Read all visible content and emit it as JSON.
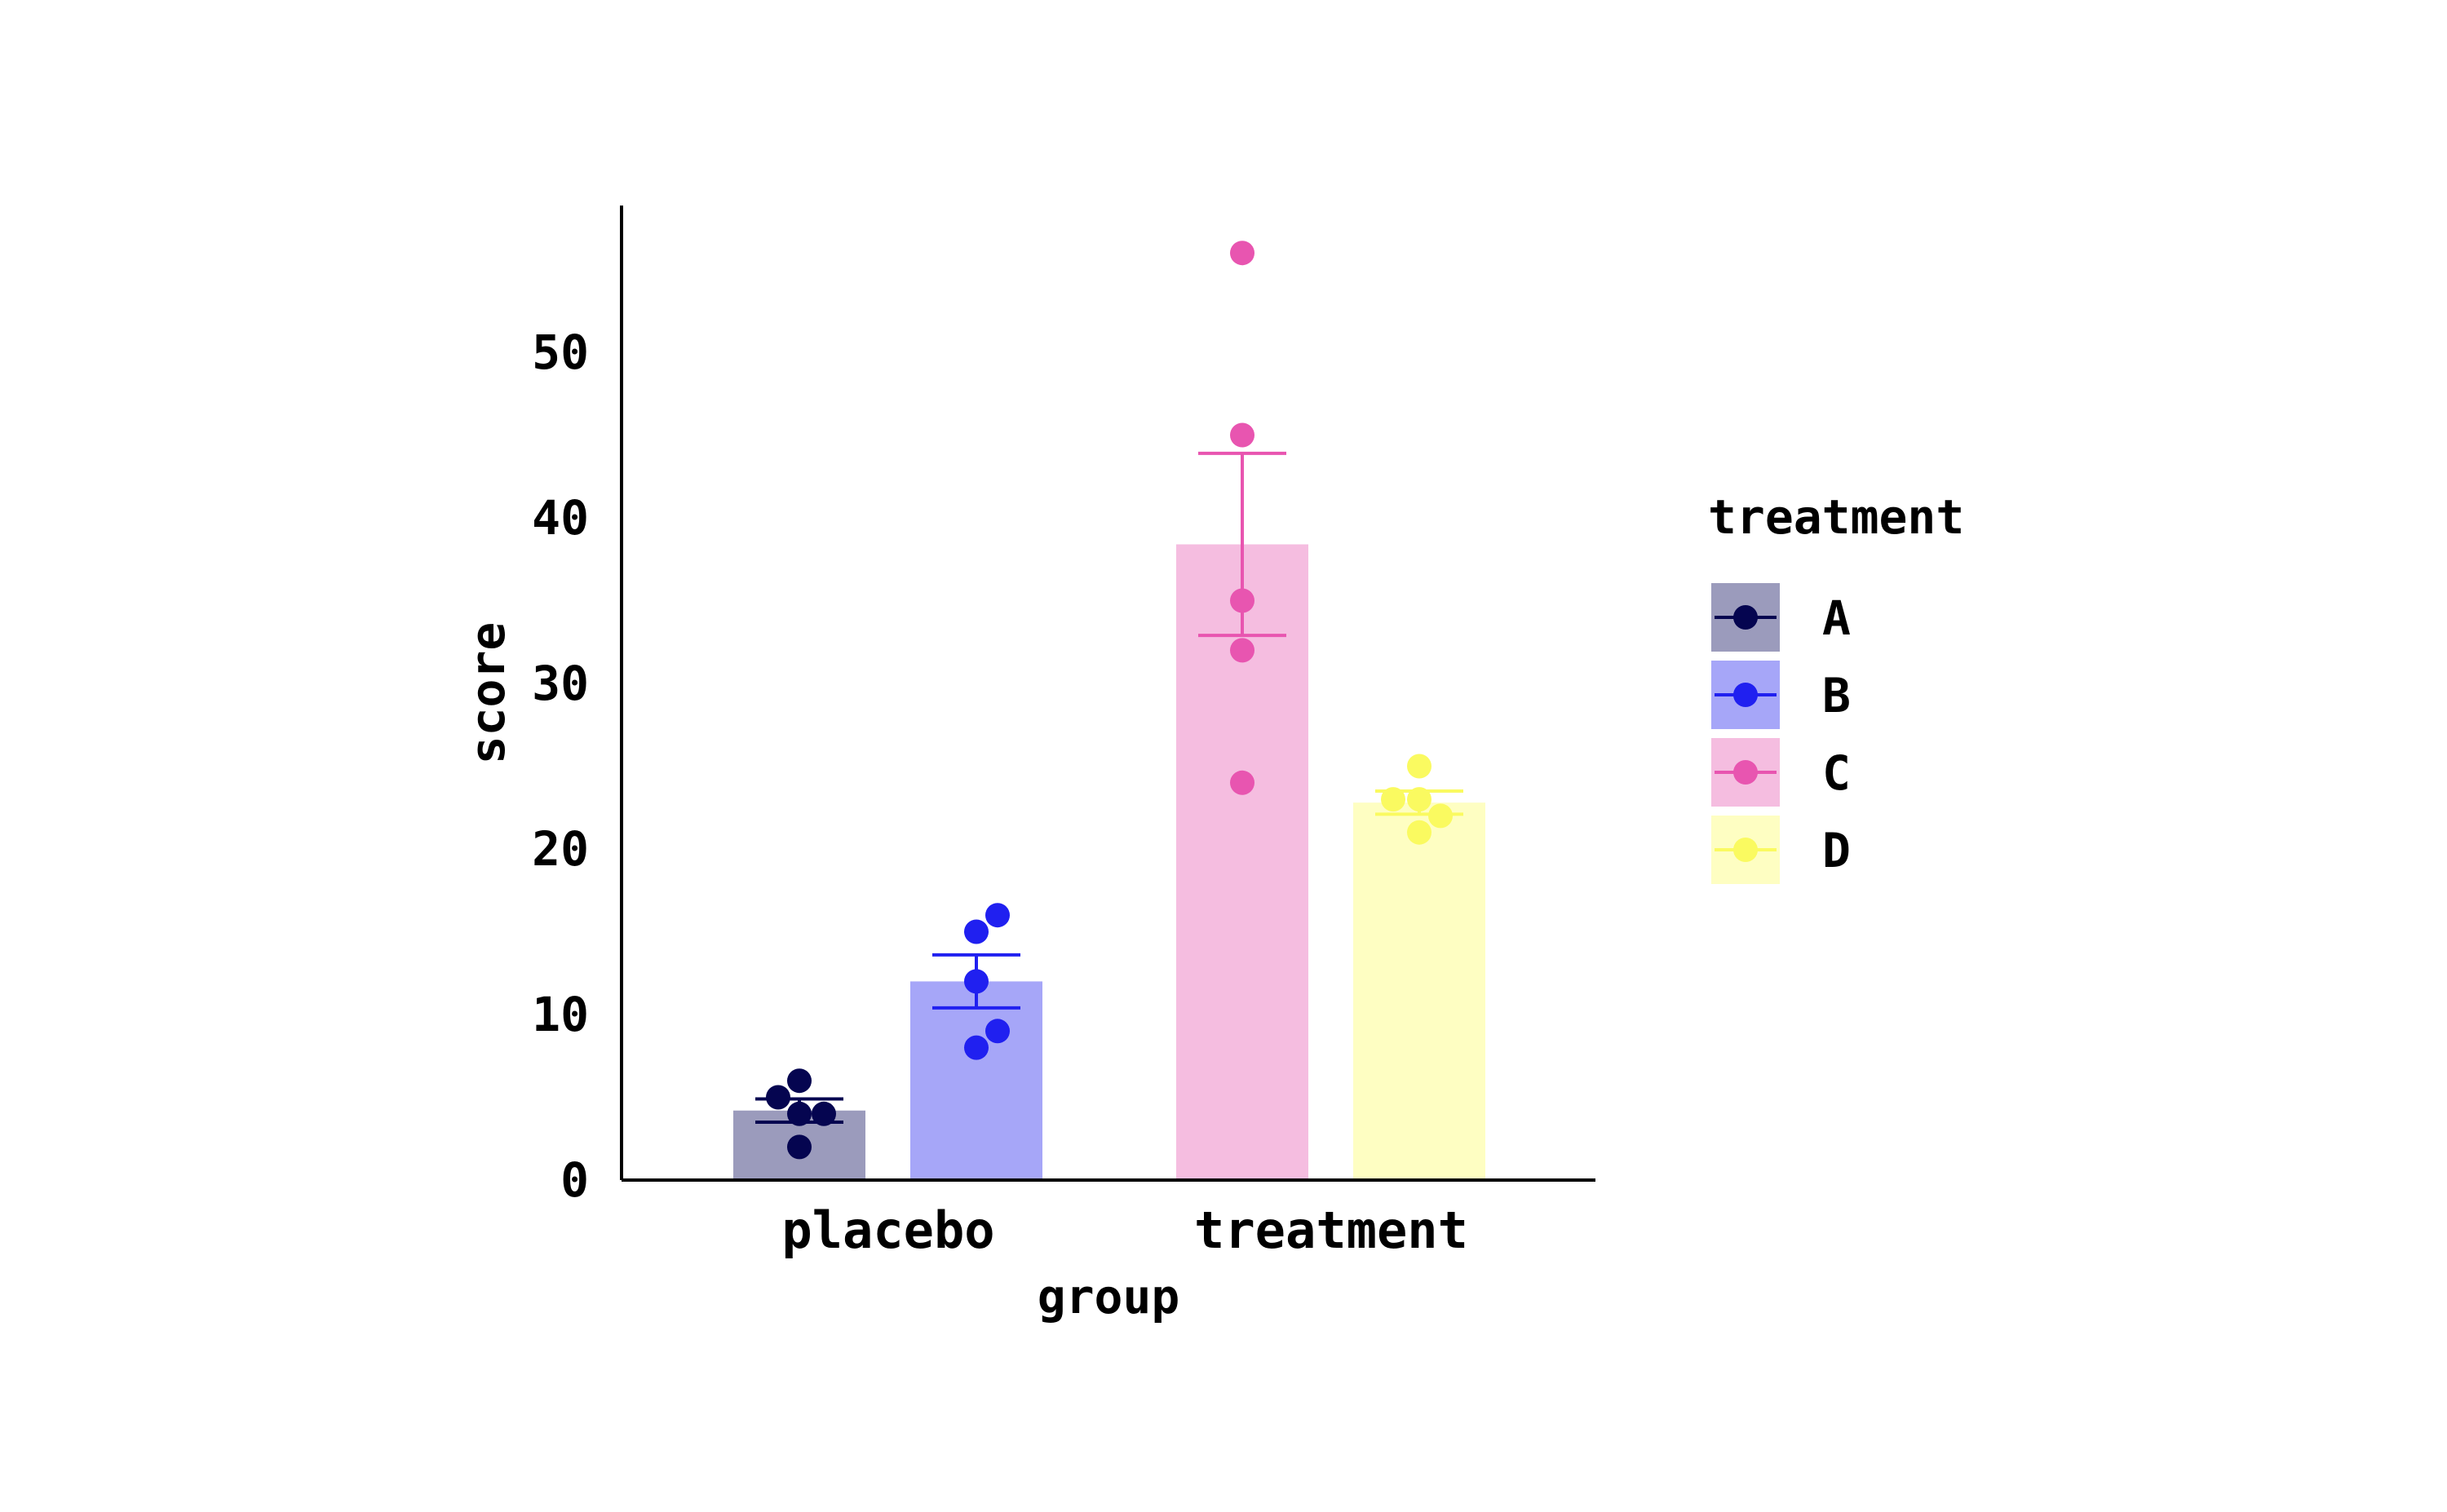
{
  "chart_data": {
    "type": "bar",
    "xlabel": "group",
    "ylabel": "score",
    "ylim": [
      0,
      58
    ],
    "yticks": [
      0,
      10,
      20,
      30,
      40,
      50
    ],
    "categories": [
      "placebo",
      "treatment"
    ],
    "grid": false,
    "legend": {
      "title": "treatment",
      "placement": "right",
      "entries": [
        {
          "name": "A",
          "color": "#050550",
          "bar_color": "#9b9bbc"
        },
        {
          "name": "B",
          "color": "#2020f0",
          "bar_color": "#a6a6f8"
        },
        {
          "name": "C",
          "color": "#e855b0",
          "bar_color": "#f5bde0"
        },
        {
          "name": "D",
          "color": "#fafa60",
          "bar_color": "#fefec2"
        }
      ]
    },
    "bars": [
      {
        "group": "placebo",
        "treatment": "A",
        "mean": 4.2,
        "err_low": 3.5,
        "err_high": 4.9,
        "points": [
          5,
          6,
          4,
          4,
          2
        ]
      },
      {
        "group": "placebo",
        "treatment": "B",
        "mean": 12.0,
        "err_low": 10.4,
        "err_high": 13.6,
        "points": [
          15,
          16,
          12,
          9,
          8
        ]
      },
      {
        "group": "treatment",
        "treatment": "C",
        "mean": 38.4,
        "err_low": 32.9,
        "err_high": 43.9,
        "points": [
          56,
          45,
          35,
          32,
          24
        ]
      },
      {
        "group": "treatment",
        "treatment": "D",
        "mean": 22.8,
        "err_low": 22.1,
        "err_high": 23.5,
        "points": [
          23,
          25,
          23,
          22,
          21
        ]
      }
    ]
  }
}
